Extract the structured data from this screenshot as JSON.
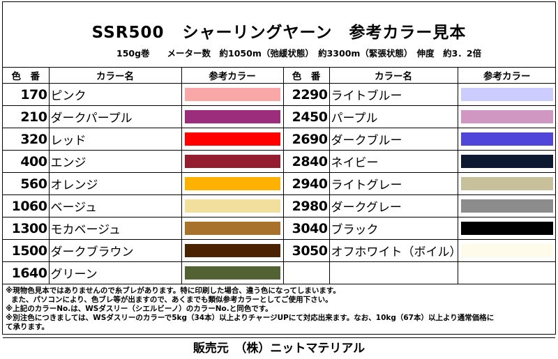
{
  "title": {
    "product": "SSR500",
    "name": "シャーリングヤーン　参考カラー見本"
  },
  "spec": "150g巻　　メーター数　約1050m（弛緩状態）　約3300m（緊張状態）　伸度　約3．2倍",
  "headers": {
    "left_number": "色　番",
    "left_name": "カラー名",
    "left_color": "参考カラー",
    "right_number": "色　番",
    "right_name": "カラー名",
    "right_color": "参考カラー"
  },
  "left_colors": [
    {
      "number": "170",
      "name": "ピンク",
      "swatch": "#f9a7a7"
    },
    {
      "number": "210",
      "name": "ダークパープル",
      "swatch": "#9c2d7c"
    },
    {
      "number": "320",
      "name": "レッド",
      "swatch": "#ff0000"
    },
    {
      "number": "400",
      "name": "エンジ",
      "swatch": "#941d30"
    },
    {
      "number": "560",
      "name": "オレンジ",
      "swatch": "#ffb100"
    },
    {
      "number": "1060",
      "name": "ベージュ",
      "swatch": "#f2df9d"
    },
    {
      "number": "1300",
      "name": "モカベージュ",
      "swatch": "#a8712c"
    },
    {
      "number": "1500",
      "name": "ダークブラウン",
      "swatch": "#4b2303"
    },
    {
      "number": "1640",
      "name": "グリーン",
      "swatch": "#526232"
    }
  ],
  "right_colors": [
    {
      "number": "2290",
      "name": "ライトブルー",
      "swatch": "#ccccff"
    },
    {
      "number": "2450",
      "name": "パープル",
      "swatch": "#cf97c2"
    },
    {
      "number": "2690",
      "name": "ダークブルー",
      "swatch": "#5046d9"
    },
    {
      "number": "2840",
      "name": "ネイビー",
      "swatch": "#0d1831"
    },
    {
      "number": "2940",
      "name": "ライトグレー",
      "swatch": "#c8c09b"
    },
    {
      "number": "2980",
      "name": "ダークグレー",
      "swatch": "#8c8c8c"
    },
    {
      "number": "3040",
      "name": "ブラック",
      "swatch": "#000000"
    },
    {
      "number": "3050",
      "name": "オフホワイト（ボイル）",
      "swatch": "#fffbea"
    }
  ],
  "notes": [
    "※現物色見本ではありませんので糸ブレがあります。特に印刷した場合、違う色になってしまいます。",
    "また、パソコンにより、色ブレ等が出ますので、あくまでも類似参考カラーとしてご使用下さい。",
    "※上記のカラーNo.は、WSダスリー（シエルビーノ）のカラーNo.と同色です。",
    "※別注色につきましては、WSダスリーのカラーで5kg（34本）以上よりチャージUPにて対応出来ます。なお、10kg（67本）以上より通常価格にて承ります。"
  ],
  "notes_wrapped": {
    "line3a": "※別注色につきましては、WSダスリーのカラーで5kg（34本）以上よりチャージUPにて対応出来ます。なお、10kg（67本）以上より通常価格に",
    "line3b": "て承ります。"
  },
  "footer": "販売元　（株）ニットマテリアル"
}
